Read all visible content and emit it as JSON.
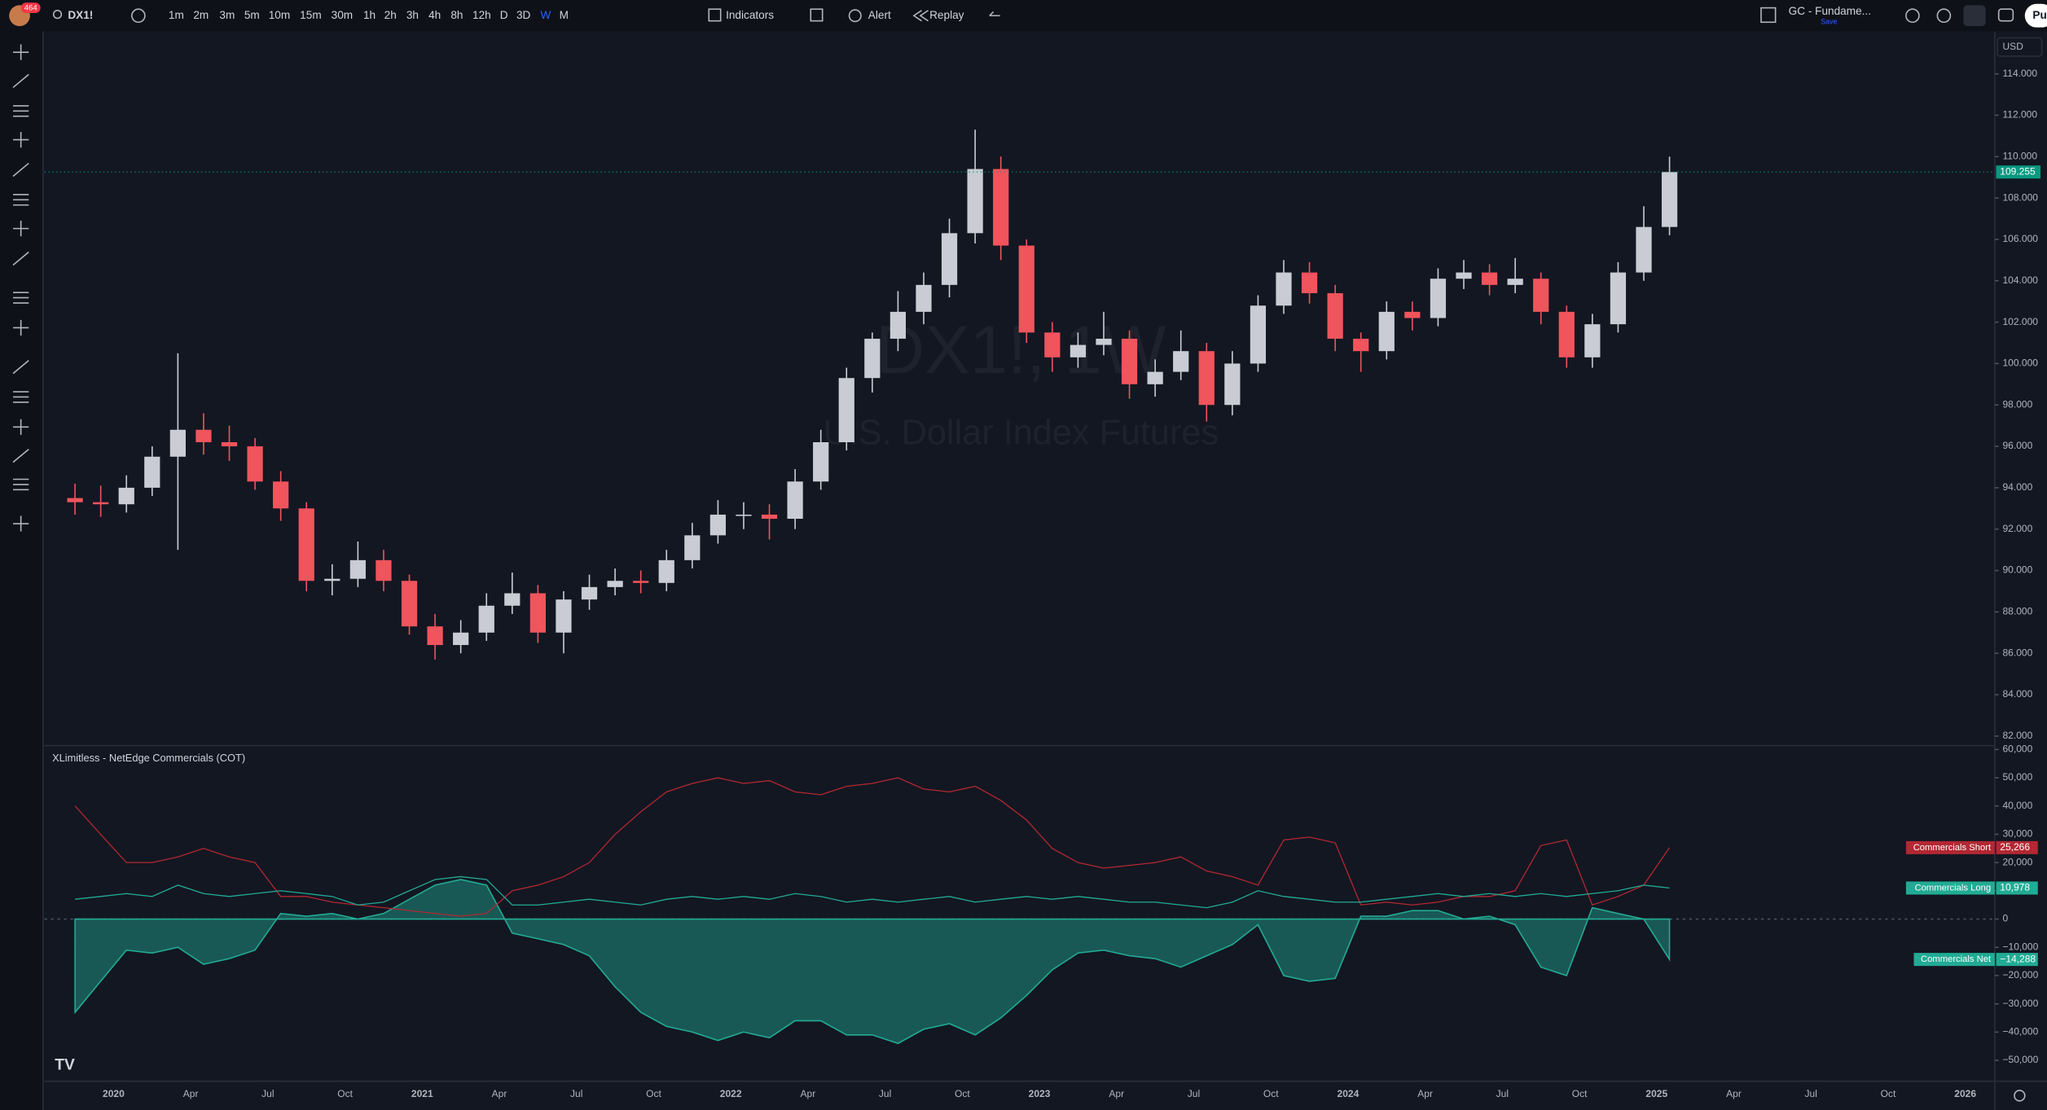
{
  "toolbar": {
    "notifications": "464",
    "symbol": "DX1!",
    "timeframes": [
      "1m",
      "2m",
      "3m",
      "5m",
      "10m",
      "15m",
      "30m",
      "1h",
      "2h",
      "3h",
      "4h",
      "8h",
      "12h",
      "D",
      "3D",
      "W",
      "M"
    ],
    "active_timeframe": "W",
    "indicators_button": "Indicators",
    "alert_button": "Alert",
    "replay_button": "Replay",
    "layout_name": "GC - Fundame...",
    "save_status": "Save",
    "publish_button": "Pu"
  },
  "chart_data": [
    {
      "type": "candlestick",
      "watermark_symbol": "DX1!, 1W",
      "watermark_description": "U.S. Dollar Index Futures",
      "currency": "USD",
      "x": [
        "2019-11",
        "2019-12",
        "2020-01",
        "2020-02",
        "2020-03",
        "2020-04",
        "2020-05",
        "2020-06",
        "2020-07",
        "2020-08",
        "2020-09",
        "2020-10",
        "2020-11",
        "2020-12",
        "2021-01",
        "2021-02",
        "2021-03",
        "2021-04",
        "2021-05",
        "2021-06",
        "2021-07",
        "2021-08",
        "2021-09",
        "2021-10",
        "2021-11",
        "2021-12",
        "2022-01",
        "2022-02",
        "2022-03",
        "2022-04",
        "2022-05",
        "2022-06",
        "2022-07",
        "2022-08",
        "2022-09",
        "2022-10",
        "2022-11",
        "2022-12",
        "2023-01",
        "2023-02",
        "2023-03",
        "2023-04",
        "2023-05",
        "2023-06",
        "2023-07",
        "2023-08",
        "2023-09",
        "2023-10",
        "2023-11",
        "2023-12",
        "2024-01",
        "2024-02",
        "2024-03",
        "2024-04",
        "2024-05",
        "2024-06",
        "2024-07",
        "2024-08",
        "2024-09",
        "2024-10",
        "2024-11",
        "2024-12",
        "2025-01"
      ],
      "open": [
        93.5,
        93.3,
        93.2,
        94.0,
        95.5,
        96.8,
        96.2,
        96.0,
        94.3,
        93.0,
        89.5,
        89.6,
        90.5,
        89.5,
        87.3,
        86.4,
        87.0,
        88.3,
        88.9,
        87.0,
        88.6,
        89.2,
        89.5,
        89.4,
        90.5,
        91.7,
        92.7,
        92.7,
        92.5,
        94.3,
        96.2,
        99.3,
        101.2,
        102.5,
        103.8,
        106.3,
        109.4,
        105.7,
        101.5,
        100.3,
        100.9,
        101.2,
        99.0,
        99.6,
        100.6,
        98.0,
        100.0,
        102.8,
        104.4,
        103.4,
        101.2,
        100.6,
        102.5,
        102.2,
        104.1,
        104.4,
        103.8,
        104.1,
        102.5,
        100.3,
        101.9,
        104.4,
        106.6
      ],
      "high": [
        94.2,
        94.1,
        94.6,
        96.0,
        100.5,
        97.6,
        97.0,
        96.4,
        94.8,
        93.3,
        90.3,
        91.4,
        91.0,
        89.8,
        87.9,
        87.6,
        88.9,
        89.9,
        89.3,
        89.0,
        89.8,
        90.1,
        90.0,
        91.0,
        92.3,
        93.4,
        93.3,
        93.2,
        94.9,
        96.8,
        99.8,
        101.5,
        103.5,
        104.4,
        107.0,
        111.3,
        110.0,
        106.0,
        102.0,
        101.5,
        102.5,
        101.6,
        100.2,
        101.6,
        101.0,
        100.6,
        103.3,
        105.0,
        104.9,
        103.8,
        101.5,
        103.0,
        103.0,
        104.6,
        105.0,
        104.8,
        105.1,
        104.4,
        102.8,
        102.4,
        104.9,
        107.6,
        110.0
      ],
      "low": [
        92.7,
        92.6,
        92.8,
        93.6,
        91.0,
        95.6,
        95.3,
        93.9,
        92.4,
        89.0,
        88.8,
        89.2,
        89.0,
        86.9,
        85.7,
        86.0,
        86.6,
        87.9,
        86.5,
        86.0,
        88.1,
        88.8,
        88.9,
        89.0,
        90.1,
        91.3,
        92.0,
        91.5,
        92.0,
        93.9,
        95.8,
        98.6,
        100.6,
        101.9,
        103.2,
        105.8,
        105.0,
        101.0,
        99.6,
        99.8,
        100.4,
        98.3,
        98.4,
        99.2,
        97.2,
        97.5,
        99.6,
        102.4,
        102.9,
        100.6,
        99.6,
        100.2,
        101.6,
        101.8,
        103.6,
        103.3,
        103.4,
        101.9,
        99.8,
        99.8,
        101.5,
        104.0,
        106.2
      ],
      "close": [
        93.3,
        93.2,
        94.0,
        95.5,
        96.8,
        96.2,
        96.0,
        94.3,
        93.0,
        89.5,
        89.6,
        90.5,
        89.5,
        87.3,
        86.4,
        87.0,
        88.3,
        88.9,
        87.0,
        88.6,
        89.2,
        89.5,
        89.4,
        90.5,
        91.7,
        92.7,
        92.7,
        92.5,
        94.3,
        96.2,
        99.3,
        101.2,
        102.5,
        103.8,
        106.3,
        109.4,
        105.7,
        101.5,
        100.3,
        100.9,
        101.2,
        99.0,
        99.6,
        100.6,
        98.0,
        100.0,
        102.8,
        104.4,
        103.4,
        101.2,
        100.6,
        102.5,
        102.2,
        104.1,
        104.4,
        103.8,
        104.1,
        102.5,
        100.3,
        101.9,
        104.4,
        106.6,
        109.255
      ],
      "up_color": "#c9ccd4",
      "down_color": "#f0545c",
      "last_price_color": "#089981",
      "ylim": [
        81.6,
        115.8
      ],
      "yticks": [
        {
          "value": 82,
          "label": "82.000"
        },
        {
          "value": 84,
          "label": "84.000"
        },
        {
          "value": 86,
          "label": "86.000"
        },
        {
          "value": 88,
          "label": "88.000"
        },
        {
          "value": 90,
          "label": "90.000"
        },
        {
          "value": 92,
          "label": "92.000"
        },
        {
          "value": 94,
          "label": "94.000"
        },
        {
          "value": 96,
          "label": "96.000"
        },
        {
          "value": 98,
          "label": "98.000"
        },
        {
          "value": 100,
          "label": "100.000"
        },
        {
          "value": 102,
          "label": "102.000"
        },
        {
          "value": 104,
          "label": "104.000"
        },
        {
          "value": 106,
          "label": "106.000"
        },
        {
          "value": 108,
          "label": "108.000"
        },
        {
          "value": 110,
          "label": "110.000"
        },
        {
          "value": 112,
          "label": "112.000"
        },
        {
          "value": 114,
          "label": "114.000"
        }
      ],
      "xticks": [
        {
          "value": "2020-01",
          "label": "2020"
        },
        {
          "value": "2020-04",
          "label": "Apr"
        },
        {
          "value": "2020-07",
          "label": "Jul"
        },
        {
          "value": "2020-10",
          "label": "Oct"
        },
        {
          "value": "2021-01",
          "label": "2021"
        },
        {
          "value": "2021-04",
          "label": "Apr"
        },
        {
          "value": "2021-07",
          "label": "Jul"
        },
        {
          "value": "2021-10",
          "label": "Oct"
        },
        {
          "value": "2022-01",
          "label": "2022"
        },
        {
          "value": "2022-04",
          "label": "Apr"
        },
        {
          "value": "2022-07",
          "label": "Jul"
        },
        {
          "value": "2022-10",
          "label": "Oct"
        },
        {
          "value": "2023-01",
          "label": "2023"
        },
        {
          "value": "2023-04",
          "label": "Apr"
        },
        {
          "value": "2023-07",
          "label": "Jul"
        },
        {
          "value": "2023-10",
          "label": "Oct"
        },
        {
          "value": "2024-01",
          "label": "2024"
        },
        {
          "value": "2024-04",
          "label": "Apr"
        },
        {
          "value": "2024-07",
          "label": "Jul"
        },
        {
          "value": "2024-10",
          "label": "Oct"
        },
        {
          "value": "2025-01",
          "label": "2025"
        },
        {
          "value": "2025-04",
          "label": "Apr"
        },
        {
          "value": "2025-07",
          "label": "Jul"
        },
        {
          "value": "2025-10",
          "label": "Oct"
        },
        {
          "value": "2026-01",
          "label": "2026"
        }
      ],
      "grid": false
    },
    {
      "type": "line",
      "title": "XLimitless - NetEdge Commercials (COT)",
      "series": [
        {
          "name": "Commercials Short",
          "color": "#b22833",
          "style": "line",
          "values": [
            40000,
            30000,
            20000,
            20000,
            22000,
            25000,
            22000,
            20000,
            8000,
            8000,
            6000,
            5000,
            4000,
            3000,
            2000,
            1000,
            2000,
            10000,
            12000,
            15000,
            20000,
            30000,
            38000,
            45000,
            48000,
            50000,
            48000,
            49000,
            45000,
            44000,
            47000,
            48000,
            50000,
            46000,
            45000,
            47000,
            42000,
            35000,
            25000,
            20000,
            18000,
            19000,
            20000,
            22000,
            17000,
            15000,
            12000,
            28000,
            29000,
            27000,
            5000,
            6000,
            5000,
            6000,
            8000,
            8000,
            10000,
            26000,
            28000,
            5000,
            8000,
            12000,
            25266
          ],
          "value_labels": [
            null,
            null,
            null,
            null,
            null,
            null,
            null,
            null,
            null,
            null,
            null,
            null,
            null,
            null,
            null,
            null,
            null,
            null,
            null,
            null,
            null,
            null,
            null,
            null,
            null,
            null,
            null,
            null,
            null,
            null,
            null,
            null,
            null,
            null,
            null,
            null,
            null,
            null,
            null,
            null,
            null,
            null,
            null,
            null,
            null,
            null,
            null,
            null,
            null,
            null,
            null,
            null,
            null,
            null,
            null,
            null,
            null,
            null,
            null,
            null,
            null,
            null,
            "25,266"
          ]
        },
        {
          "name": "Commercials Long",
          "color": "#22ab94",
          "style": "line",
          "values": [
            7000,
            8000,
            9000,
            8000,
            12000,
            9000,
            8000,
            9000,
            10000,
            9000,
            8000,
            5000,
            6000,
            10000,
            14000,
            15000,
            14000,
            5000,
            5000,
            6000,
            7000,
            6000,
            5000,
            7000,
            8000,
            7000,
            8000,
            7000,
            9000,
            8000,
            6000,
            7000,
            6000,
            7000,
            8000,
            6000,
            7000,
            8000,
            7000,
            8000,
            7000,
            6000,
            6000,
            5000,
            4000,
            6000,
            10000,
            8000,
            7000,
            6000,
            6000,
            7000,
            8000,
            9000,
            8000,
            9000,
            8000,
            9000,
            8000,
            9000,
            10000,
            12000,
            10978
          ],
          "value_labels": [
            null,
            null,
            null,
            null,
            null,
            null,
            null,
            null,
            null,
            null,
            null,
            null,
            null,
            null,
            null,
            null,
            null,
            null,
            null,
            null,
            null,
            null,
            null,
            null,
            null,
            null,
            null,
            null,
            null,
            null,
            null,
            null,
            null,
            null,
            null,
            null,
            null,
            null,
            null,
            null,
            null,
            null,
            null,
            null,
            null,
            null,
            null,
            null,
            null,
            null,
            null,
            null,
            null,
            null,
            null,
            null,
            null,
            null,
            null,
            null,
            null,
            null,
            "10,978"
          ]
        },
        {
          "name": "Commercials Net",
          "color": "#22ab94",
          "style": "area",
          "values": [
            -33000,
            -22000,
            -11000,
            -12000,
            -10000,
            -16000,
            -14000,
            -11000,
            2000,
            1000,
            2000,
            0,
            2000,
            7000,
            12000,
            14000,
            12000,
            -5000,
            -7000,
            -9000,
            -13000,
            -24000,
            -33000,
            -38000,
            -40000,
            -43000,
            -40000,
            -42000,
            -36000,
            -36000,
            -41000,
            -41000,
            -44000,
            -39000,
            -37000,
            -41000,
            -35000,
            -27000,
            -18000,
            -12000,
            -11000,
            -13000,
            -14000,
            -17000,
            -13000,
            -9000,
            -2000,
            -20000,
            -22000,
            -21000,
            1000,
            1000,
            3000,
            3000,
            0,
            1000,
            -2000,
            -17000,
            -20000,
            4000,
            2000,
            0,
            -14288
          ],
          "value_labels": [
            null,
            null,
            null,
            null,
            null,
            null,
            null,
            null,
            null,
            null,
            null,
            null,
            null,
            null,
            null,
            null,
            null,
            null,
            null,
            null,
            null,
            null,
            null,
            null,
            null,
            null,
            null,
            null,
            null,
            null,
            null,
            null,
            null,
            null,
            null,
            null,
            null,
            null,
            null,
            null,
            null,
            null,
            null,
            null,
            null,
            null,
            null,
            null,
            null,
            null,
            null,
            null,
            null,
            null,
            null,
            null,
            null,
            null,
            null,
            null,
            null,
            null,
            "−14,288"
          ]
        }
      ],
      "ylim": [
        -57400,
        60900
      ],
      "yticks": [
        {
          "value": 60000,
          "label": "60,000"
        },
        {
          "value": 50000,
          "label": "50,000"
        },
        {
          "value": 40000,
          "label": "40,000"
        },
        {
          "value": 30000,
          "label": "30,000"
        },
        {
          "value": 20000,
          "label": "20,000"
        },
        {
          "value": 10000,
          "label": "10,000"
        },
        0,
        {
          "value": -10000,
          "label": "−10,000"
        },
        {
          "value": -20000,
          "label": "−20,000"
        },
        {
          "value": -30000,
          "label": "−30,000"
        },
        {
          "value": -40000,
          "label": "−40,000"
        },
        {
          "value": -50000,
          "label": "−50,000"
        }
      ],
      "grid": false
    }
  ]
}
